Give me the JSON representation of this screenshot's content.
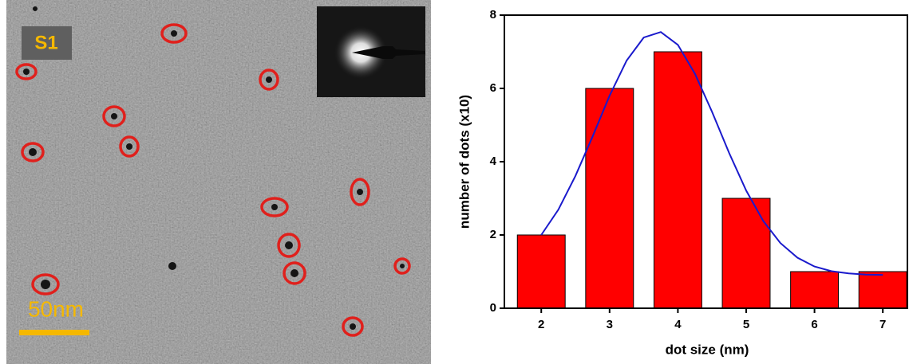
{
  "image": {
    "label": "S1",
    "scale_bar": "50nm"
  },
  "chart_data": {
    "type": "bar",
    "x": [
      2,
      3,
      4,
      5,
      6,
      7
    ],
    "values": [
      2,
      6,
      7,
      3,
      1,
      1
    ],
    "color": "#ff0000",
    "xlabel": "dot size (nm)",
    "ylabel": "number of dots (x10)",
    "xlim": [
      1.46,
      7.36
    ],
    "xticks": [
      2,
      3,
      4,
      5,
      6,
      7
    ],
    "ylim": [
      0,
      8
    ],
    "yticks": [
      0,
      2,
      4,
      6,
      8
    ],
    "fit": {
      "type": "line",
      "color": "#1a1acc",
      "x": [
        2,
        2.25,
        2.5,
        2.75,
        3,
        3.25,
        3.5,
        3.75,
        4,
        4.25,
        4.5,
        4.75,
        5,
        5.25,
        5.5,
        5.75,
        6,
        6.25,
        6.5,
        6.75,
        7
      ],
      "values": [
        2.0,
        2.69,
        3.61,
        4.68,
        5.8,
        6.76,
        7.39,
        7.54,
        7.19,
        6.4,
        5.36,
        4.24,
        3.21,
        2.38,
        1.78,
        1.38,
        1.14,
        1.01,
        0.95,
        0.92,
        0.91
      ]
    }
  }
}
